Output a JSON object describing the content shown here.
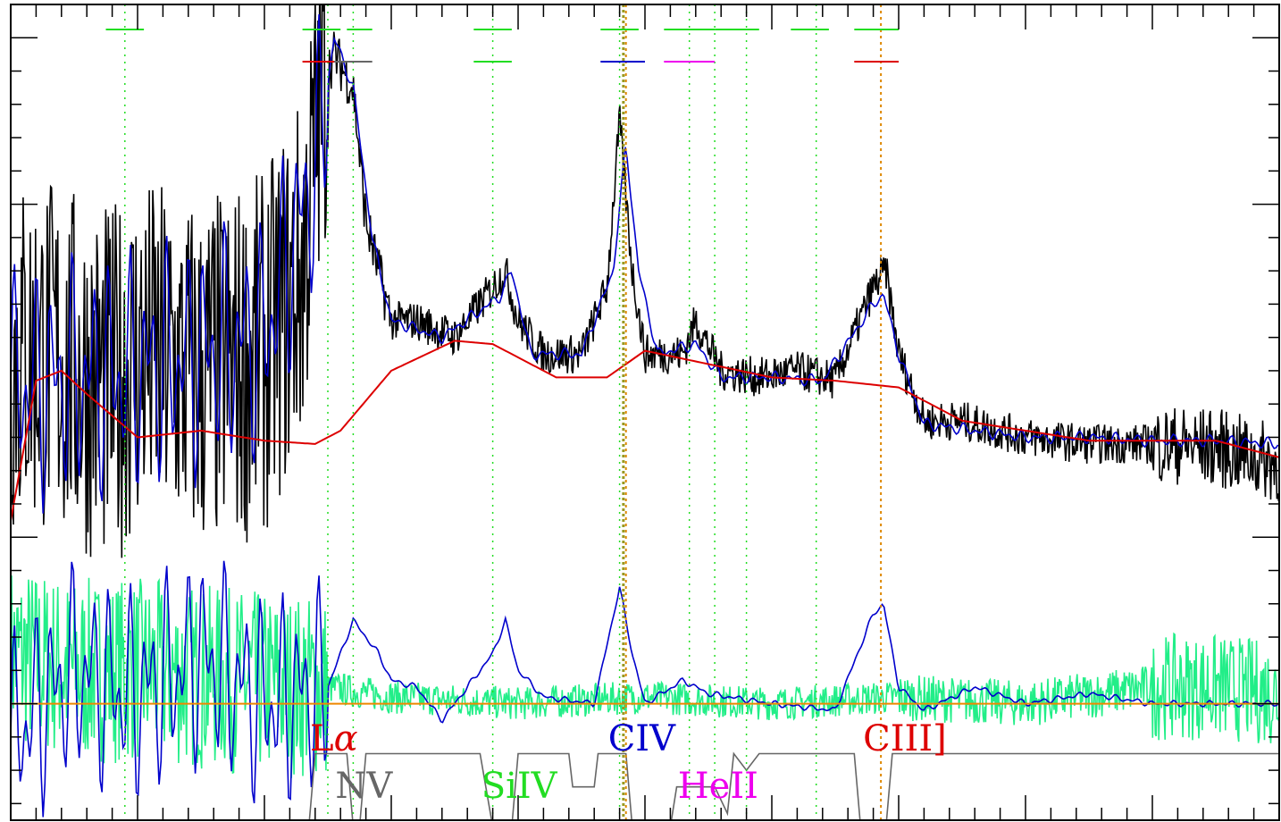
{
  "chart_data": {
    "type": "line",
    "title": "",
    "xlabel": "",
    "ylabel": "",
    "xlim": [
      0,
      1000
    ],
    "ylim": [
      -0.35,
      2.1
    ],
    "grid": false,
    "axes": {
      "tick_labels_shown": false
    },
    "series": [
      {
        "role": "observed-spectrum",
        "color": "#000000",
        "points": [
          [
            0,
            1.05
          ],
          [
            30,
            1.05
          ],
          [
            50,
            1.0
          ],
          [
            80,
            0.95
          ],
          [
            100,
            1.05
          ],
          [
            150,
            0.98
          ],
          [
            200,
            1.05
          ],
          [
            230,
            1.3
          ],
          [
            245,
            1.85
          ],
          [
            255,
            1.95
          ],
          [
            270,
            1.85
          ],
          [
            280,
            1.45
          ],
          [
            300,
            1.15
          ],
          [
            320,
            1.15
          ],
          [
            350,
            1.1
          ],
          [
            380,
            1.25
          ],
          [
            390,
            1.3
          ],
          [
            400,
            1.15
          ],
          [
            420,
            1.05
          ],
          [
            450,
            1.05
          ],
          [
            470,
            1.25
          ],
          [
            480,
            1.75
          ],
          [
            490,
            1.3
          ],
          [
            500,
            1.05
          ],
          [
            530,
            1.05
          ],
          [
            540,
            1.15
          ],
          [
            560,
            1.0
          ],
          [
            590,
            0.98
          ],
          [
            620,
            1.0
          ],
          [
            650,
            0.97
          ],
          [
            680,
            1.25
          ],
          [
            690,
            1.3
          ],
          [
            700,
            1.05
          ],
          [
            720,
            0.85
          ],
          [
            750,
            0.85
          ],
          [
            800,
            0.8
          ],
          [
            850,
            0.78
          ],
          [
            900,
            0.78
          ],
          [
            950,
            0.77
          ],
          [
            1000,
            0.72
          ]
        ]
      },
      {
        "role": "smoothed-spectrum",
        "color": "#0000cc",
        "points": [
          [
            0,
            0.95
          ],
          [
            100,
            1.0
          ],
          [
            200,
            1.1
          ],
          [
            240,
            1.6
          ],
          [
            255,
            2.0
          ],
          [
            270,
            1.85
          ],
          [
            285,
            1.4
          ],
          [
            300,
            1.15
          ],
          [
            340,
            1.1
          ],
          [
            385,
            1.22
          ],
          [
            395,
            1.3
          ],
          [
            410,
            1.05
          ],
          [
            450,
            1.05
          ],
          [
            475,
            1.3
          ],
          [
            485,
            1.68
          ],
          [
            495,
            1.3
          ],
          [
            510,
            1.05
          ],
          [
            540,
            1.08
          ],
          [
            560,
            0.98
          ],
          [
            600,
            0.98
          ],
          [
            640,
            0.97
          ],
          [
            680,
            1.2
          ],
          [
            688,
            1.23
          ],
          [
            700,
            1.05
          ],
          [
            720,
            0.84
          ],
          [
            760,
            0.82
          ],
          [
            800,
            0.8
          ],
          [
            850,
            0.8
          ],
          [
            900,
            0.79
          ],
          [
            950,
            0.79
          ],
          [
            1000,
            0.78
          ]
        ]
      },
      {
        "role": "continuum-fit",
        "color": "#dd0000",
        "points": [
          [
            0,
            0.55
          ],
          [
            20,
            0.97
          ],
          [
            40,
            1.0
          ],
          [
            60,
            0.93
          ],
          [
            100,
            0.8
          ],
          [
            150,
            0.82
          ],
          [
            200,
            0.79
          ],
          [
            240,
            0.78
          ],
          [
            260,
            0.82
          ],
          [
            300,
            1.0
          ],
          [
            350,
            1.09
          ],
          [
            380,
            1.08
          ],
          [
            430,
            0.98
          ],
          [
            470,
            0.98
          ],
          [
            500,
            1.06
          ],
          [
            550,
            1.02
          ],
          [
            600,
            0.98
          ],
          [
            650,
            0.97
          ],
          [
            700,
            0.95
          ],
          [
            750,
            0.85
          ],
          [
            800,
            0.82
          ],
          [
            850,
            0.79
          ],
          [
            900,
            0.79
          ],
          [
            950,
            0.79
          ],
          [
            1000,
            0.74
          ]
        ]
      },
      {
        "role": "residual",
        "color": "#22ee88",
        "points": [
          [
            0,
            0.15
          ],
          [
            50,
            0.1
          ],
          [
            100,
            0.1
          ],
          [
            150,
            0.08
          ],
          [
            200,
            0.06
          ],
          [
            250,
            0.05
          ],
          [
            300,
            0.02
          ],
          [
            400,
            0.0
          ],
          [
            500,
            0.02
          ],
          [
            600,
            0.0
          ],
          [
            700,
            0.02
          ],
          [
            800,
            0.0
          ],
          [
            900,
            0.05
          ],
          [
            950,
            0.05
          ],
          [
            1000,
            0.03
          ]
        ]
      },
      {
        "role": "residual-smoothed",
        "color": "#0000cc",
        "points": [
          [
            0,
            -0.1
          ],
          [
            50,
            0.1
          ],
          [
            100,
            0.02
          ],
          [
            150,
            0.15
          ],
          [
            200,
            0.0
          ],
          [
            250,
            0.05
          ],
          [
            270,
            0.25
          ],
          [
            290,
            0.15
          ],
          [
            300,
            0.07
          ],
          [
            320,
            0.05
          ],
          [
            340,
            -0.05
          ],
          [
            380,
            0.15
          ],
          [
            390,
            0.25
          ],
          [
            400,
            0.1
          ],
          [
            420,
            0.02
          ],
          [
            460,
            0.0
          ],
          [
            480,
            0.35
          ],
          [
            490,
            0.15
          ],
          [
            500,
            0.0
          ],
          [
            530,
            0.07
          ],
          [
            550,
            0.03
          ],
          [
            600,
            0.0
          ],
          [
            650,
            -0.02
          ],
          [
            680,
            0.27
          ],
          [
            688,
            0.3
          ],
          [
            700,
            0.05
          ],
          [
            720,
            -0.02
          ],
          [
            760,
            0.05
          ],
          [
            800,
            0.0
          ],
          [
            850,
            0.03
          ],
          [
            900,
            0.0
          ],
          [
            1000,
            0.0
          ]
        ]
      },
      {
        "role": "line-windows",
        "color": "#666666",
        "points": [
          [
            0,
            -0.37
          ],
          [
            235,
            -0.37
          ],
          [
            240,
            -0.15
          ],
          [
            265,
            -0.15
          ],
          [
            270,
            -0.37
          ],
          [
            275,
            -0.37
          ],
          [
            280,
            -0.15
          ],
          [
            370,
            -0.15
          ],
          [
            380,
            -0.37
          ],
          [
            395,
            -0.37
          ],
          [
            400,
            -0.15
          ],
          [
            440,
            -0.15
          ],
          [
            443,
            -0.25
          ],
          [
            460,
            -0.25
          ],
          [
            463,
            -0.15
          ],
          [
            485,
            -0.15
          ],
          [
            490,
            -0.37
          ],
          [
            520,
            -0.37
          ],
          [
            525,
            -0.25
          ],
          [
            555,
            -0.25
          ],
          [
            565,
            -0.33
          ],
          [
            570,
            -0.15
          ],
          [
            580,
            -0.2
          ],
          [
            590,
            -0.15
          ],
          [
            665,
            -0.15
          ],
          [
            670,
            -0.37
          ],
          [
            690,
            -0.37
          ],
          [
            695,
            -0.15
          ],
          [
            1000,
            -0.15
          ]
        ]
      },
      {
        "role": "zero-line",
        "color": "#ee8800",
        "points": [
          [
            0,
            0.0
          ],
          [
            1000,
            0.0
          ]
        ]
      }
    ],
    "line_labels": [
      {
        "text": "L",
        "greek": "α",
        "color": "#dd0000",
        "x": 250
      },
      {
        "text": "NV",
        "color": "#666666",
        "x": 270
      },
      {
        "text": "SiIV",
        "color": "#22dd22",
        "x": 385
      },
      {
        "text": "CIV",
        "color": "#0000cc",
        "x": 485
      },
      {
        "text": "HeII",
        "color": "#ee00ee",
        "x": 540
      },
      {
        "text": "CIII]",
        "color": "#dd0000",
        "x": 686
      }
    ],
    "marker_lines": {
      "green": [
        90,
        250,
        270,
        380,
        480,
        535,
        555,
        580,
        635
      ],
      "orange": [
        485,
        686
      ],
      "olive": [
        483
      ]
    },
    "window_marks_top": {
      "color": "#22dd22",
      "y": 2.05,
      "spans": [
        [
          75,
          105
        ],
        [
          230,
          260
        ],
        [
          265,
          285
        ],
        [
          365,
          395
        ],
        [
          465,
          495
        ],
        [
          515,
          555
        ],
        [
          555,
          590
        ],
        [
          615,
          645
        ],
        [
          665,
          700
        ]
      ]
    },
    "window_marks_second": [
      {
        "color": "#22dd22",
        "span": [
          365,
          395
        ]
      },
      {
        "color": "#dd0000",
        "span": [
          230,
          260
        ]
      },
      {
        "color": "#666666",
        "span": [
          255,
          285
        ]
      },
      {
        "color": "#0000cc",
        "span": [
          465,
          500
        ]
      },
      {
        "color": "#ee00ee",
        "span": [
          515,
          555
        ]
      },
      {
        "color": "#dd0000",
        "span": [
          665,
          700
        ]
      }
    ]
  }
}
